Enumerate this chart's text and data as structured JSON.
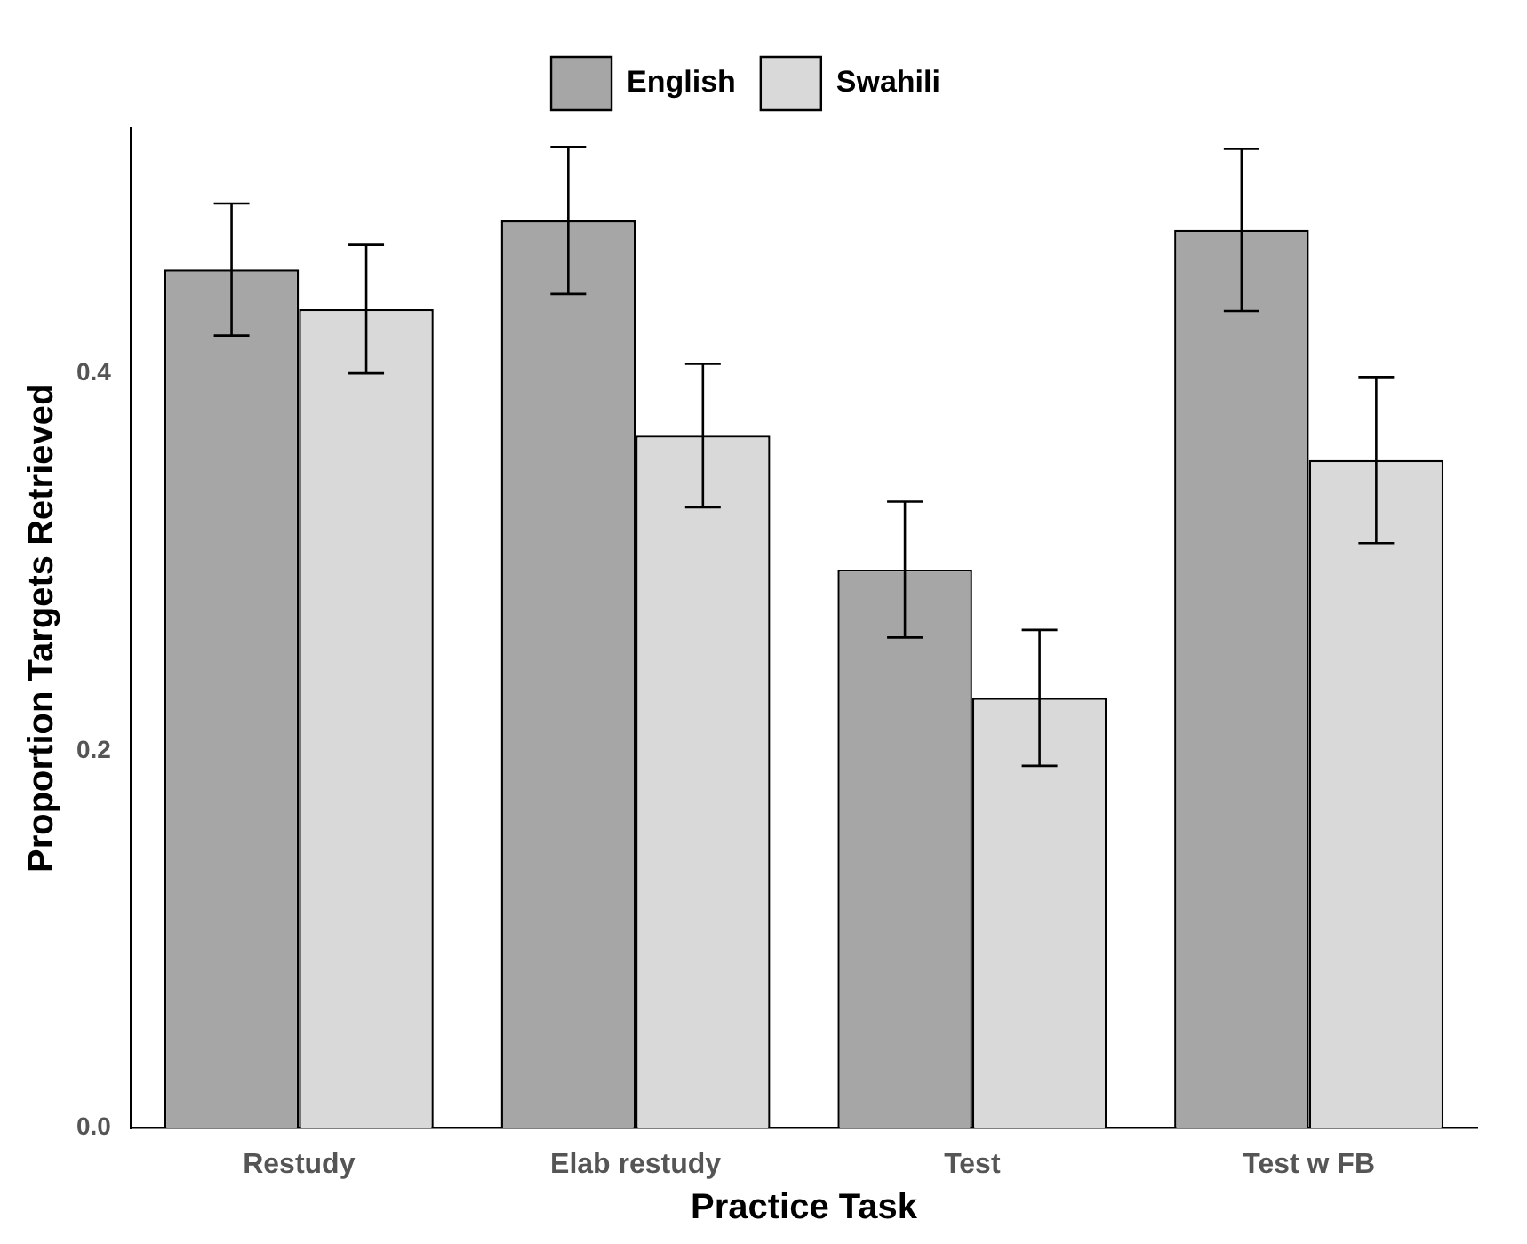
{
  "chart_data": {
    "type": "bar",
    "xlabel": "Practice Task",
    "ylabel": "Proportion Targets Retrieved",
    "categories": [
      "Restudy",
      "Elab restudy",
      "Test",
      "Test w FB"
    ],
    "series": [
      {
        "name": "English",
        "color": "#a6a6a6",
        "values": [
          0.455,
          0.481,
          0.296,
          0.476
        ],
        "errors": [
          0.035,
          0.039,
          0.036,
          0.043
        ]
      },
      {
        "name": "Swahili",
        "color": "#d9d9d9",
        "values": [
          0.434,
          0.367,
          0.228,
          0.354
        ],
        "errors": [
          0.034,
          0.038,
          0.036,
          0.044
        ]
      }
    ],
    "ylim": [
      0,
      0.53
    ],
    "yticks": [
      {
        "value": 0,
        "label": "0.0"
      },
      {
        "value": 0.2,
        "label": "0.2"
      },
      {
        "value": 0.4,
        "label": "0.4"
      }
    ],
    "grid": false,
    "legend": "top"
  }
}
